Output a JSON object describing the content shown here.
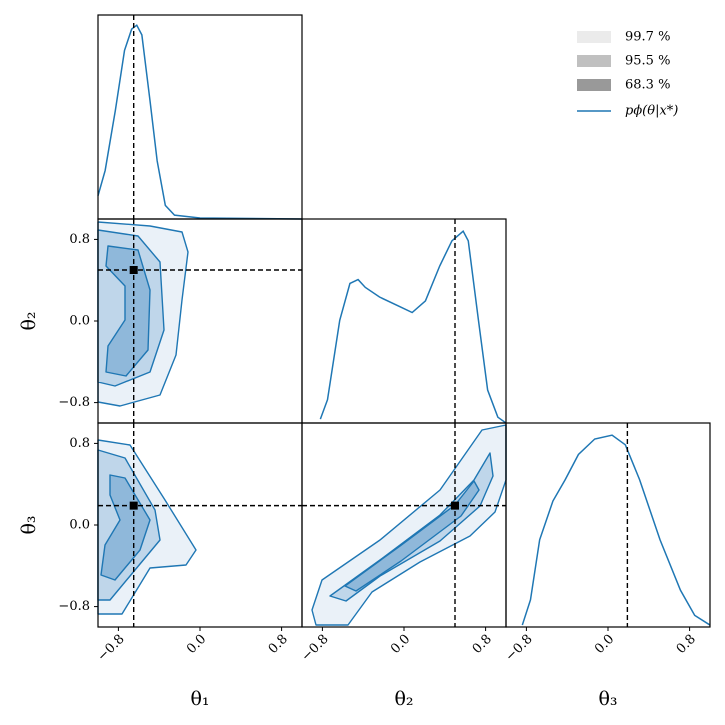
{
  "chart_data": {
    "type": "corner",
    "labels": [
      "θ₁",
      "θ₂",
      "θ₃"
    ],
    "xlim": [
      -1,
      1
    ],
    "ticks": [
      {
        "value": -0.8,
        "label": "−0.8"
      },
      {
        "value": 0,
        "label": "0.0"
      },
      {
        "value": 0.8,
        "label": "0.8"
      }
    ],
    "true_values": [
      -0.65,
      0.5,
      0.19
    ],
    "legend": [
      {
        "name": "99.7 %",
        "color": "#ebebeb"
      },
      {
        "name": "95.5 %",
        "color": "#c0c0c0"
      },
      {
        "name": "68.3 %",
        "color": "#999999"
      }
    ],
    "series": [
      {
        "name": "pϕ(θ|x*)",
        "color": "#1f77b4"
      }
    ],
    "marginals": [
      {
        "x": [
          -1.0,
          -0.93,
          -0.83,
          -0.74,
          -0.67,
          -0.62,
          -0.57,
          -0.49,
          -0.42,
          -0.34,
          -0.25,
          0,
          1
        ],
        "values": [
          0.12,
          0.25,
          0.56,
          0.87,
          0.98,
          1.0,
          0.95,
          0.61,
          0.3,
          0.07,
          0.02,
          0.005,
          0
        ]
      },
      {
        "x": [
          -0.82,
          -0.75,
          -0.63,
          -0.53,
          -0.45,
          -0.38,
          -0.24,
          -0.04,
          0.08,
          0.21,
          0.35,
          0.47,
          0.58,
          0.63,
          0.73,
          0.82,
          0.92,
          1.0
        ],
        "values": [
          0.02,
          0.12,
          0.53,
          0.72,
          0.74,
          0.7,
          0.65,
          0.6,
          0.57,
          0.63,
          0.81,
          0.94,
          0.99,
          0.94,
          0.53,
          0.17,
          0.03,
          0
        ]
      },
      {
        "x": [
          -0.84,
          -0.76,
          -0.67,
          -0.54,
          -0.42,
          -0.29,
          -0.13,
          0.04,
          0.17,
          0.31,
          0.51,
          0.71,
          0.85,
          1.0
        ],
        "values": [
          0.01,
          0.14,
          0.45,
          0.65,
          0.76,
          0.89,
          0.97,
          0.99,
          0.94,
          0.76,
          0.45,
          0.19,
          0.06,
          0.01
        ]
      }
    ]
  }
}
